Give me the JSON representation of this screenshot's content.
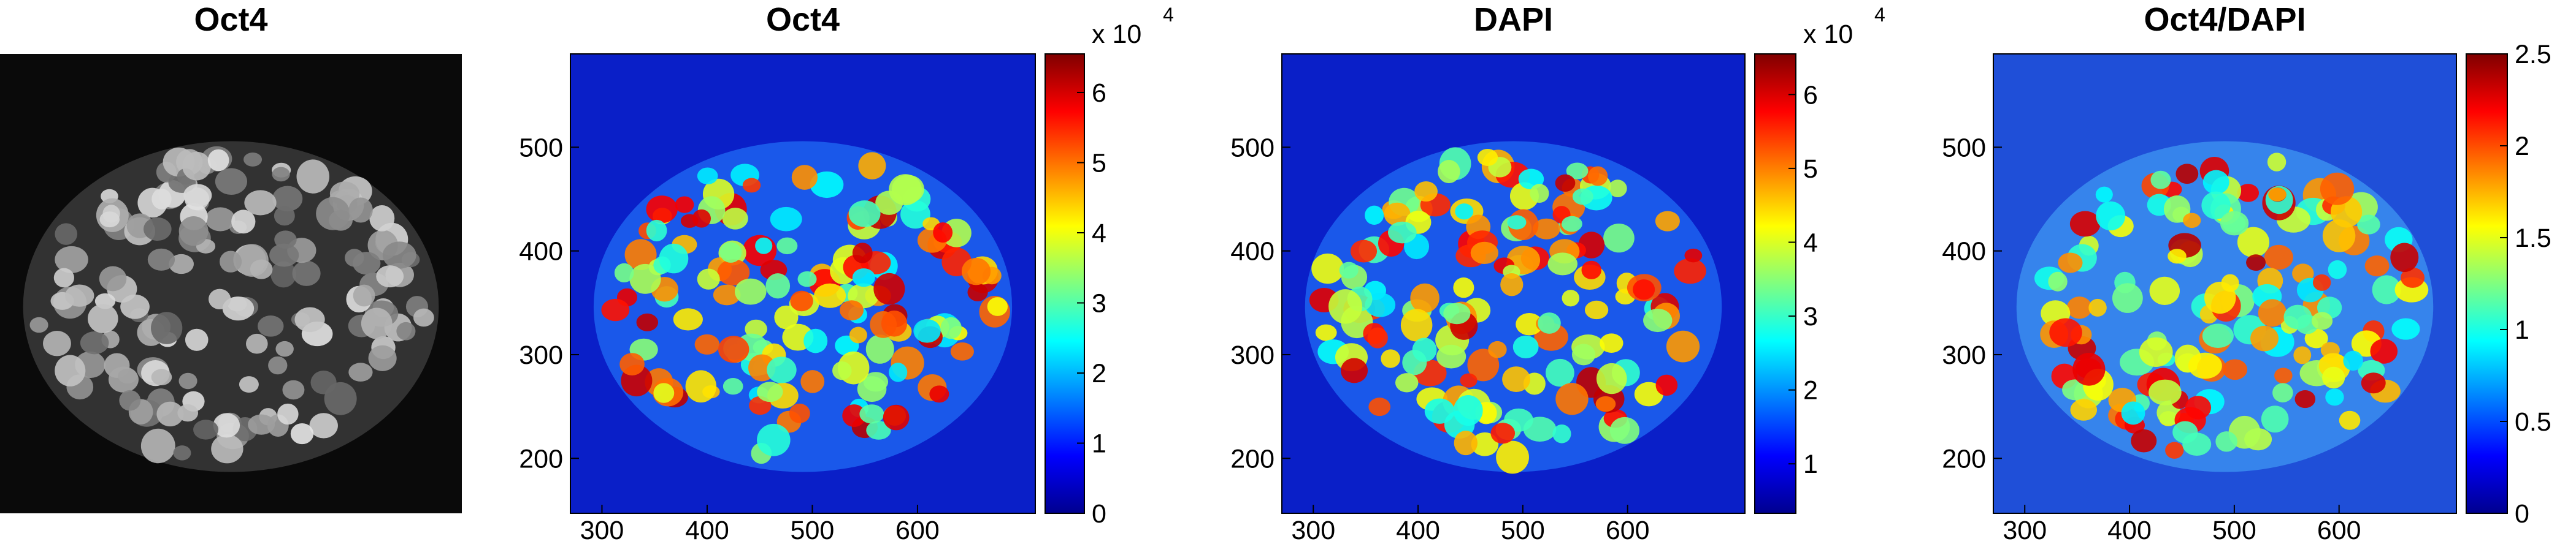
{
  "chart_data": [
    {
      "type": "image",
      "title": "Oct4",
      "colormap": "gray"
    },
    {
      "type": "heatmap",
      "title": "Oct4",
      "colormap": "jet",
      "xlim": [
        270,
        712
      ],
      "ylim": [
        147,
        590
      ],
      "xticks": [
        300,
        400,
        500,
        600
      ],
      "yticks": [
        200,
        300,
        400,
        500
      ],
      "clim": [
        0,
        6.55
      ],
      "cticks": [
        0,
        1,
        2,
        3,
        4,
        5,
        6
      ],
      "colorbar_multiplier": "x 10",
      "colorbar_exponent": "4"
    },
    {
      "type": "heatmap",
      "title": "DAPI",
      "colormap": "jet",
      "xlim": [
        270,
        712
      ],
      "ylim": [
        147,
        590
      ],
      "xticks": [
        300,
        400,
        500,
        600
      ],
      "yticks": [
        200,
        300,
        400,
        500
      ],
      "clim": [
        0.33,
        6.55
      ],
      "cticks": [
        1,
        2,
        3,
        4,
        5,
        6
      ],
      "colorbar_multiplier": "x 10",
      "colorbar_exponent": "4"
    },
    {
      "type": "heatmap",
      "title": "Oct4/DAPI",
      "colormap": "jet",
      "xlim": [
        270,
        712
      ],
      "ylim": [
        147,
        590
      ],
      "xticks": [
        300,
        400,
        500,
        600
      ],
      "yticks": [
        200,
        300,
        400,
        500
      ],
      "clim": [
        0,
        2.5
      ],
      "cticks": [
        0,
        0.5,
        1,
        1.5,
        2,
        2.5
      ]
    }
  ]
}
